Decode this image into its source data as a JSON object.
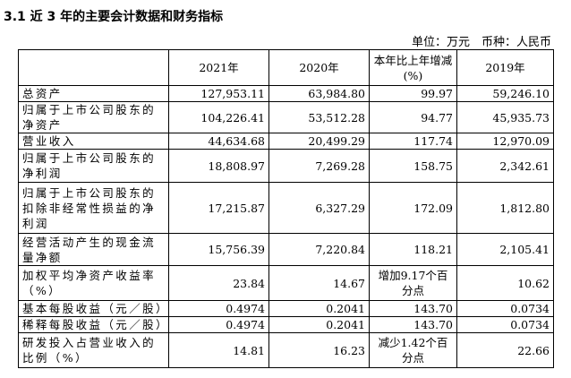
{
  "header": {
    "title": "3.1 近 3 年的主要会计数据和财务指标",
    "unit": "单位：万元　币种：人民币"
  },
  "table": {
    "columns": [
      "",
      "2021年",
      "2020年",
      "本年比上年增减(%)",
      "2019年"
    ],
    "rows": [
      [
        "总资产",
        "127,953.11",
        "63,984.80",
        "99.97",
        "59,246.10"
      ],
      [
        "归属于上市公司股东的净资产",
        "104,226.41",
        "53,512.28",
        "94.77",
        "45,935.73"
      ],
      [
        "营业收入",
        "44,634.68",
        "20,499.29",
        "117.74",
        "12,970.09"
      ],
      [
        "归属于上市公司股东的净利润",
        "18,808.97",
        "7,269.28",
        "158.75",
        "2,342.61"
      ],
      [
        "归属于上市公司股东的扣除非经常性损益的净利润",
        "17,215.87",
        "6,327.29",
        "172.09",
        "1,812.80"
      ],
      [
        "经营活动产生的现金流量净额",
        "15,756.39",
        "7,220.84",
        "118.21",
        "2,105.41"
      ],
      [
        "加权平均净资产收益率（%）",
        "23.84",
        "14.67",
        "增加9.17个百分点",
        "10.62"
      ],
      [
        "基本每股收益（元／股）",
        "0.4974",
        "0.2041",
        "143.70",
        "0.0734"
      ],
      [
        "稀释每股收益（元／股）",
        "0.4974",
        "0.2041",
        "143.70",
        "0.0734"
      ],
      [
        "研发投入占营业收入的比例（%）",
        "14.81",
        "16.23",
        "减少1.42个百分点",
        "22.66"
      ]
    ]
  }
}
